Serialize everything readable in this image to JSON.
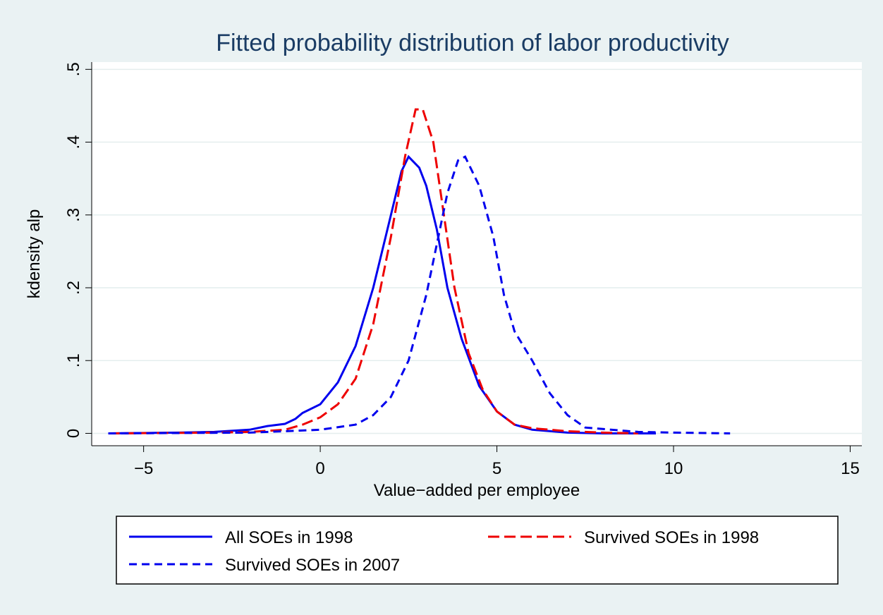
{
  "chart_data": {
    "type": "line",
    "title": "Fitted probability distribution of labor productivity",
    "x_label": "Value−added per employee",
    "y_label": "kdensity alp",
    "xlim": [
      -6.47,
      15.33
    ],
    "ylim": [
      -0.017,
      0.51
    ],
    "xticks": [
      {
        "value": -5,
        "label": "−5"
      },
      0,
      5,
      10,
      15
    ],
    "yticks": [
      0,
      {
        "value": 0.1,
        "label": ".1"
      },
      {
        "value": 0.2,
        "label": ".2"
      },
      {
        "value": 0.3,
        "label": ".3"
      },
      {
        "value": 0.4,
        "label": ".4"
      },
      {
        "value": 0.5,
        "label": ".5"
      }
    ],
    "grid": true,
    "legend": "bottom",
    "series": [
      {
        "name": "All SOEs in 1998",
        "color": "#0000ee",
        "line_style": "solid",
        "x": [
          -6,
          -4,
          -3,
          -2,
          -1.5,
          -1,
          -0.7,
          -0.5,
          0,
          0.5,
          1,
          1.5,
          2,
          2.3,
          2.5,
          2.8,
          3,
          3.3,
          3.6,
          4,
          4.5,
          5,
          5.5,
          6,
          7,
          8,
          9.5
        ],
        "values": [
          0,
          0.001,
          0.002,
          0.005,
          0.01,
          0.013,
          0.02,
          0.028,
          0.04,
          0.07,
          0.12,
          0.2,
          0.3,
          0.36,
          0.38,
          0.365,
          0.34,
          0.28,
          0.2,
          0.13,
          0.065,
          0.03,
          0.012,
          0.005,
          0.001,
          0,
          0
        ]
      },
      {
        "name": "Survived SOEs in 1998",
        "color": "#ee0000",
        "line_style": "long-dash",
        "x": [
          -6,
          -3,
          -2,
          -1,
          -0.5,
          0,
          0.5,
          1,
          1.5,
          2,
          2.4,
          2.7,
          2.9,
          3.2,
          3.5,
          3.8,
          4.2,
          4.6,
          5,
          5.5,
          6,
          7,
          8,
          9
        ],
        "values": [
          0,
          0.001,
          0.002,
          0.005,
          0.012,
          0.022,
          0.04,
          0.075,
          0.15,
          0.27,
          0.38,
          0.445,
          0.445,
          0.4,
          0.3,
          0.2,
          0.11,
          0.06,
          0.03,
          0.012,
          0.007,
          0.003,
          0.001,
          0
        ]
      },
      {
        "name": "Survived SOEs in 2007",
        "color": "#0000ee",
        "line_style": "dash",
        "x": [
          -6,
          -2,
          -1,
          0,
          1,
          1.5,
          2,
          2.5,
          3,
          3.3,
          3.6,
          3.9,
          4.1,
          4.5,
          4.9,
          5.2,
          5.5,
          6,
          6.5,
          7,
          7.5,
          8,
          9,
          10,
          11.6
        ],
        "values": [
          0,
          0.001,
          0.003,
          0.005,
          0.012,
          0.025,
          0.05,
          0.1,
          0.19,
          0.26,
          0.33,
          0.375,
          0.38,
          0.34,
          0.27,
          0.19,
          0.14,
          0.1,
          0.055,
          0.025,
          0.008,
          0.006,
          0.002,
          0.001,
          0
        ]
      }
    ]
  }
}
